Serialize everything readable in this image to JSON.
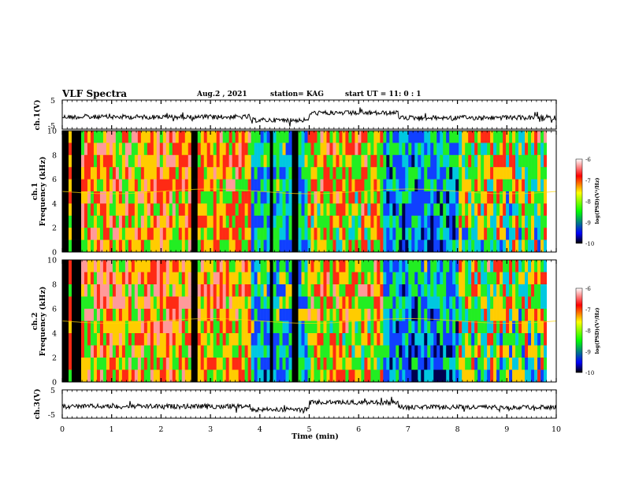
{
  "header": {
    "title": "VLF Spectra",
    "date": "Aug.2 , 2021",
    "station": "station= KAG",
    "start": "start UT = 11: 0 : 1"
  },
  "chart_data": [
    {
      "type": "line",
      "name": "ch1-waveform",
      "ylabel": "ch.1(V)",
      "ylim": [
        -5,
        5
      ],
      "yticks": [
        "5",
        "-5"
      ],
      "xlim": [
        0,
        10
      ],
      "note": "raw waveform amplitude vs time"
    },
    {
      "type": "heatmap",
      "name": "ch1-spectrogram",
      "ylabel": "ch.1\nFrequency (kHz)",
      "ylim": [
        0,
        10
      ],
      "yticks": [
        "10",
        "8",
        "6",
        "4",
        "2",
        "0"
      ],
      "xlim": [
        0,
        10
      ],
      "colorbar": {
        "label": "log(PSD)(V²/Hz)",
        "range": [
          -10,
          -6
        ],
        "ticks": [
          "-6",
          "-7",
          "-8",
          "-9",
          "-10"
        ],
        "colors": [
          "#ffffff",
          "#ff0000",
          "#ffff00",
          "#00ff00",
          "#0000ff",
          "#000000"
        ]
      },
      "dark_bands_min": [
        0.05,
        0.12,
        0.2,
        0.28,
        0.35,
        2.65,
        2.72,
        2.8,
        3.82,
        3.88,
        4.25,
        4.7,
        4.75,
        8.02
      ]
    },
    {
      "type": "heatmap",
      "name": "ch2-spectrogram",
      "ylabel": "ch.2\nFrequency (kHz)",
      "ylim": [
        0,
        10
      ],
      "yticks": [
        "10",
        "8",
        "6",
        "4",
        "2",
        "0"
      ],
      "xlim": [
        0,
        10
      ],
      "colorbar": {
        "label": "log(PSD)(V²/Hz)",
        "range": [
          -10,
          -6
        ],
        "ticks": [
          "-6",
          "-7",
          "-8",
          "-9",
          "-10"
        ]
      }
    },
    {
      "type": "line",
      "name": "ch3-waveform",
      "ylabel": "ch.3(V)",
      "ylim": [
        -5,
        5
      ],
      "yticks": [
        "5",
        "-5"
      ],
      "xlim": [
        0,
        10
      ],
      "xlabel": "Time (min)",
      "xticks": [
        "0",
        "1",
        "2",
        "3",
        "4",
        "5",
        "6",
        "7",
        "8",
        "9",
        "10"
      ]
    }
  ]
}
